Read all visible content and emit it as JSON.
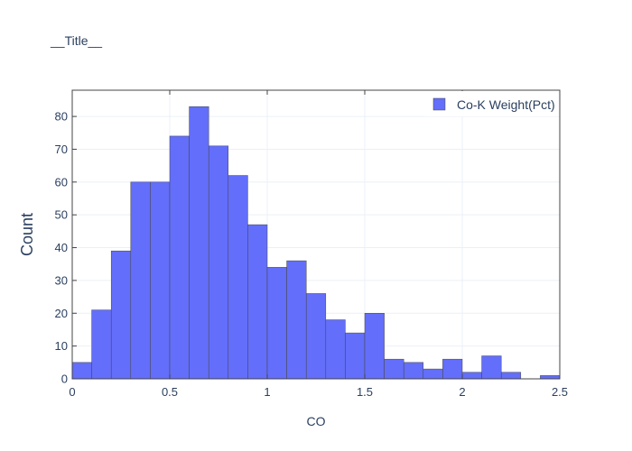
{
  "chart_data": {
    "type": "bar",
    "title": "__Title__",
    "xlabel": "CO",
    "ylabel": "Count",
    "xlim": [
      0,
      2.5
    ],
    "ylim": [
      0,
      88
    ],
    "bin_width": 0.1,
    "xticks": [
      0,
      0.5,
      1,
      1.5,
      2,
      2.5
    ],
    "xtick_labels": [
      "0",
      "0.5",
      "1",
      "1.5",
      "2",
      "2.5"
    ],
    "yticks": [
      0,
      10,
      20,
      30,
      40,
      50,
      60,
      70,
      80
    ],
    "ytick_labels": [
      "0",
      "10",
      "20",
      "30",
      "40",
      "50",
      "60",
      "70",
      "80"
    ],
    "grid": true,
    "legend_position": "top-right",
    "series": [
      {
        "name": "Co-K Weight(Pct)",
        "color": "#636efa",
        "bins": [
          {
            "start": 0.0,
            "end": 0.1,
            "count": 5
          },
          {
            "start": 0.1,
            "end": 0.2,
            "count": 21
          },
          {
            "start": 0.2,
            "end": 0.3,
            "count": 39
          },
          {
            "start": 0.3,
            "end": 0.4,
            "count": 60
          },
          {
            "start": 0.4,
            "end": 0.5,
            "count": 60
          },
          {
            "start": 0.5,
            "end": 0.6,
            "count": 74
          },
          {
            "start": 0.6,
            "end": 0.7,
            "count": 83
          },
          {
            "start": 0.7,
            "end": 0.8,
            "count": 71
          },
          {
            "start": 0.8,
            "end": 0.9,
            "count": 62
          },
          {
            "start": 0.9,
            "end": 1.0,
            "count": 47
          },
          {
            "start": 1.0,
            "end": 1.1,
            "count": 34
          },
          {
            "start": 1.1,
            "end": 1.2,
            "count": 36
          },
          {
            "start": 1.2,
            "end": 1.3,
            "count": 26
          },
          {
            "start": 1.3,
            "end": 1.4,
            "count": 18
          },
          {
            "start": 1.4,
            "end": 1.5,
            "count": 14
          },
          {
            "start": 1.5,
            "end": 1.6,
            "count": 20
          },
          {
            "start": 1.6,
            "end": 1.7,
            "count": 6
          },
          {
            "start": 1.7,
            "end": 1.8,
            "count": 5
          },
          {
            "start": 1.8,
            "end": 1.9,
            "count": 3
          },
          {
            "start": 1.9,
            "end": 2.0,
            "count": 6
          },
          {
            "start": 2.0,
            "end": 2.1,
            "count": 2
          },
          {
            "start": 2.1,
            "end": 2.2,
            "count": 7
          },
          {
            "start": 2.2,
            "end": 2.3,
            "count": 2
          },
          {
            "start": 2.4,
            "end": 2.5,
            "count": 1
          }
        ]
      }
    ]
  }
}
